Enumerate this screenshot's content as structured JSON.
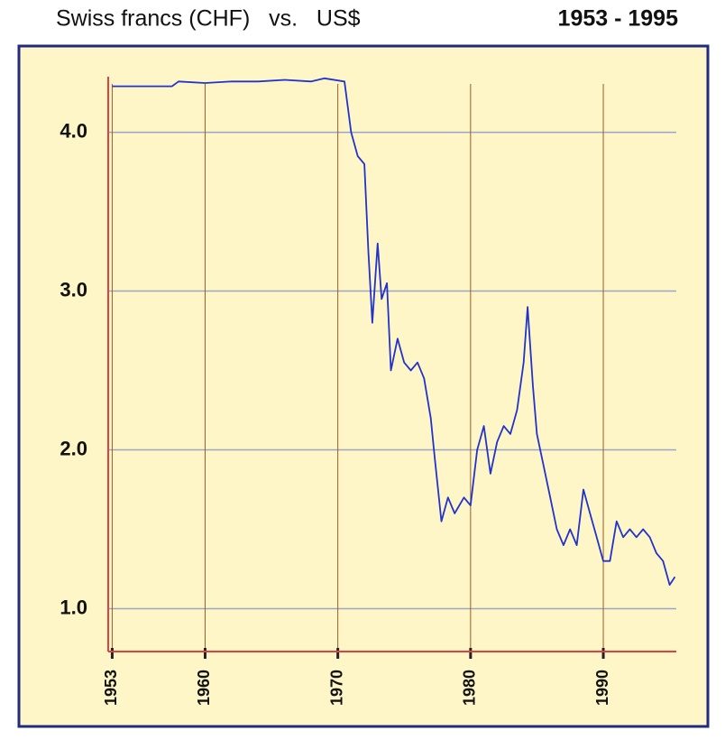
{
  "chart_data": {
    "type": "line",
    "title": "Swiss francs (CHF)   vs.   US$",
    "subtitle": "1953 - 1995",
    "series": [
      {
        "color": "#2233cc",
        "x": [
          1953,
          1955,
          1957.5,
          1958,
          1960,
          1962,
          1964,
          1966,
          1968,
          1969,
          1970.5,
          1971,
          1971.5,
          1972,
          1972.3,
          1972.6,
          1973,
          1973.3,
          1973.7,
          1974,
          1974.5,
          1975,
          1975.5,
          1976,
          1976.5,
          1977,
          1977.3,
          1977.8,
          1978.3,
          1978.8,
          1979.5,
          1980,
          1980.5,
          1981,
          1981.5,
          1982,
          1982.5,
          1983,
          1983.5,
          1984,
          1984.3,
          1984.7,
          1985,
          1985.5,
          1986,
          1986.5,
          1987,
          1987.5,
          1988,
          1988.5,
          1989,
          1989.5,
          1990,
          1990.5,
          1991,
          1991.5,
          1992,
          1992.5,
          1993,
          1993.5,
          1994,
          1994.5,
          1995,
          1995.4
        ],
        "values": [
          4.29,
          4.29,
          4.29,
          4.32,
          4.31,
          4.32,
          4.32,
          4.33,
          4.32,
          4.34,
          4.32,
          4.0,
          3.85,
          3.8,
          3.25,
          2.8,
          3.3,
          2.95,
          3.05,
          2.5,
          2.7,
          2.55,
          2.5,
          2.55,
          2.45,
          2.2,
          1.95,
          1.55,
          1.7,
          1.6,
          1.7,
          1.65,
          2.0,
          2.15,
          1.85,
          2.05,
          2.15,
          2.1,
          2.25,
          2.55,
          2.9,
          2.4,
          2.1,
          1.9,
          1.7,
          1.5,
          1.4,
          1.5,
          1.4,
          1.75,
          1.6,
          1.45,
          1.3,
          1.3,
          1.55,
          1.45,
          1.5,
          1.45,
          1.5,
          1.45,
          1.35,
          1.3,
          1.15,
          1.2
        ]
      }
    ],
    "xlim": [
      1952.7,
      1995.5
    ],
    "ylim": [
      0.73,
      4.35
    ],
    "xticks": [
      1953,
      1960,
      1970,
      1980,
      1990
    ],
    "yticks": [
      {
        "value": 1,
        "label": "1.0"
      },
      {
        "value": 2,
        "label": "2.0"
      },
      {
        "value": 3,
        "label": "3.0"
      },
      {
        "value": 4,
        "label": "4.0"
      }
    ],
    "grid": true
  }
}
